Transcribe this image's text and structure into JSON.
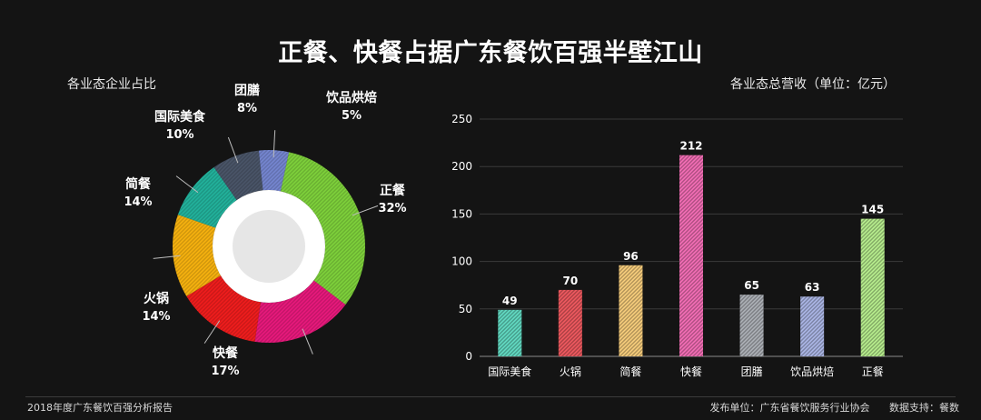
{
  "title": "正餐、快餐占据广东餐饮百强半壁江山",
  "footer": {
    "left": "2018年度广东餐饮百强分析报告",
    "publisher": "发布单位：广东省餐饮服务行业协会",
    "data_support": "数据支持：餐数"
  },
  "chart_data": [
    {
      "type": "pie",
      "title": "各业态企业占比",
      "slices": [
        {
          "label": "正餐",
          "value": 32,
          "display": "32%",
          "color": "#7ed13b"
        },
        {
          "label": "快餐",
          "value": 17,
          "display": "17%",
          "color": "#e8197c"
        },
        {
          "label": "火锅",
          "value": 14,
          "display": "14%",
          "color": "#f01d1d"
        },
        {
          "label": "简餐",
          "value": 14,
          "display": "14%",
          "color": "#f7b20f"
        },
        {
          "label": "国际美食",
          "value": 10,
          "display": "10%",
          "color": "#22b29c"
        },
        {
          "label": "团膳",
          "value": 8,
          "display": "8%",
          "color": "#4a5568"
        },
        {
          "label": "饮品烘焙",
          "value": 5,
          "display": "5%",
          "color": "#7586d0"
        }
      ]
    },
    {
      "type": "bar",
      "title": "各业态总营收（单位：亿元）",
      "categories": [
        "国际美食",
        "火锅",
        "简餐",
        "快餐",
        "团膳",
        "饮品烘焙",
        "正餐"
      ],
      "values": [
        49,
        70,
        96,
        212,
        65,
        63,
        145
      ],
      "colors": [
        "#63dcc4",
        "#f05a60",
        "#f9cf7d",
        "#f56fb7",
        "#aeb2b8",
        "#adb8e8",
        "#b9f08f"
      ],
      "ylim": [
        0,
        250
      ],
      "yticks": [
        0,
        50,
        100,
        150,
        200,
        250
      ],
      "grid": true
    }
  ]
}
